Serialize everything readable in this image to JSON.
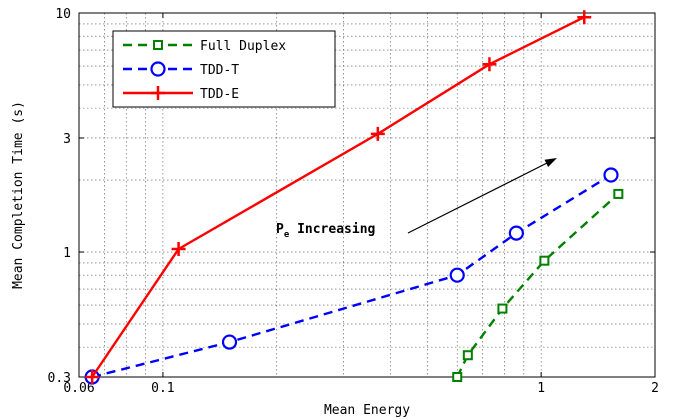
{
  "chart_data": {
    "type": "line",
    "xlabel": "Mean Energy",
    "ylabel": "Mean Completion Time (s)",
    "xscale": "log",
    "yscale": "log",
    "xlim": [
      0.06,
      2
    ],
    "ylim": [
      0.3,
      10
    ],
    "grid": true,
    "xticks": [
      {
        "value": 0.06,
        "label": "0.06"
      },
      {
        "value": 0.1,
        "label": "0.1"
      },
      {
        "value": 1,
        "label": "1"
      },
      {
        "value": 2,
        "label": "2"
      }
    ],
    "yticks": [
      {
        "value": 0.3,
        "label": "0.3"
      },
      {
        "value": 1,
        "label": "1"
      },
      {
        "value": 3,
        "label": "3"
      },
      {
        "value": 10,
        "label": "10"
      }
    ],
    "legend_position": "top-left",
    "series": [
      {
        "name": "Full Duplex",
        "color": "#008000",
        "line_style": "dashed",
        "marker": "square",
        "x": [
          0.6,
          0.64,
          0.79,
          1.02,
          1.6
        ],
        "y": [
          0.3,
          0.37,
          0.58,
          0.92,
          1.75
        ]
      },
      {
        "name": "TDD-T",
        "color": "#0000ff",
        "line_style": "dashed",
        "marker": "circle",
        "x": [
          0.065,
          0.15,
          0.6,
          0.86,
          1.53
        ],
        "y": [
          0.3,
          0.42,
          0.8,
          1.2,
          2.1
        ]
      },
      {
        "name": "TDD-E",
        "color": "#ff0000",
        "line_style": "solid",
        "marker": "plus",
        "x": [
          0.065,
          0.11,
          0.37,
          0.73,
          1.3
        ],
        "y": [
          0.3,
          1.03,
          3.12,
          6.1,
          9.6
        ]
      }
    ],
    "annotations": [
      {
        "text_main": "P",
        "text_sub": "e",
        "text_rest": " Increasing",
        "arrow": true
      }
    ]
  }
}
